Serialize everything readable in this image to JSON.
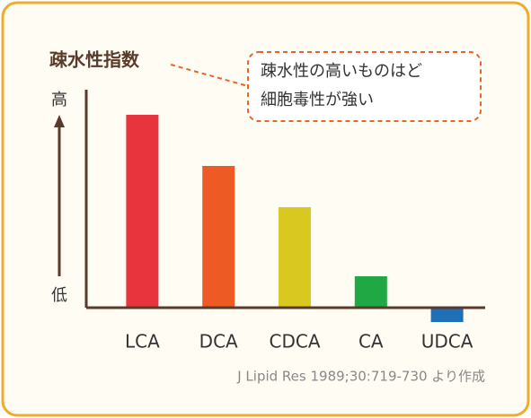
{
  "chart_data": {
    "type": "bar",
    "title": "疎水性指数",
    "annotation": [
      "疎水性の高いものはど",
      "細胞毒性が強い"
    ],
    "y_high_label": "高",
    "y_low_label": "低",
    "source": "J Lipid Res 1989;30:719-730 より作成",
    "categories": [
      "LCA",
      "DCA",
      "CDCA",
      "CA",
      "UDCA"
    ],
    "values": [
      215,
      158,
      112,
      35,
      -16
    ],
    "colors": [
      "#e8343c",
      "#ee5a24",
      "#d9c81f",
      "#1fa843",
      "#1f6fb5"
    ],
    "ylim": [
      -20,
      243
    ]
  }
}
